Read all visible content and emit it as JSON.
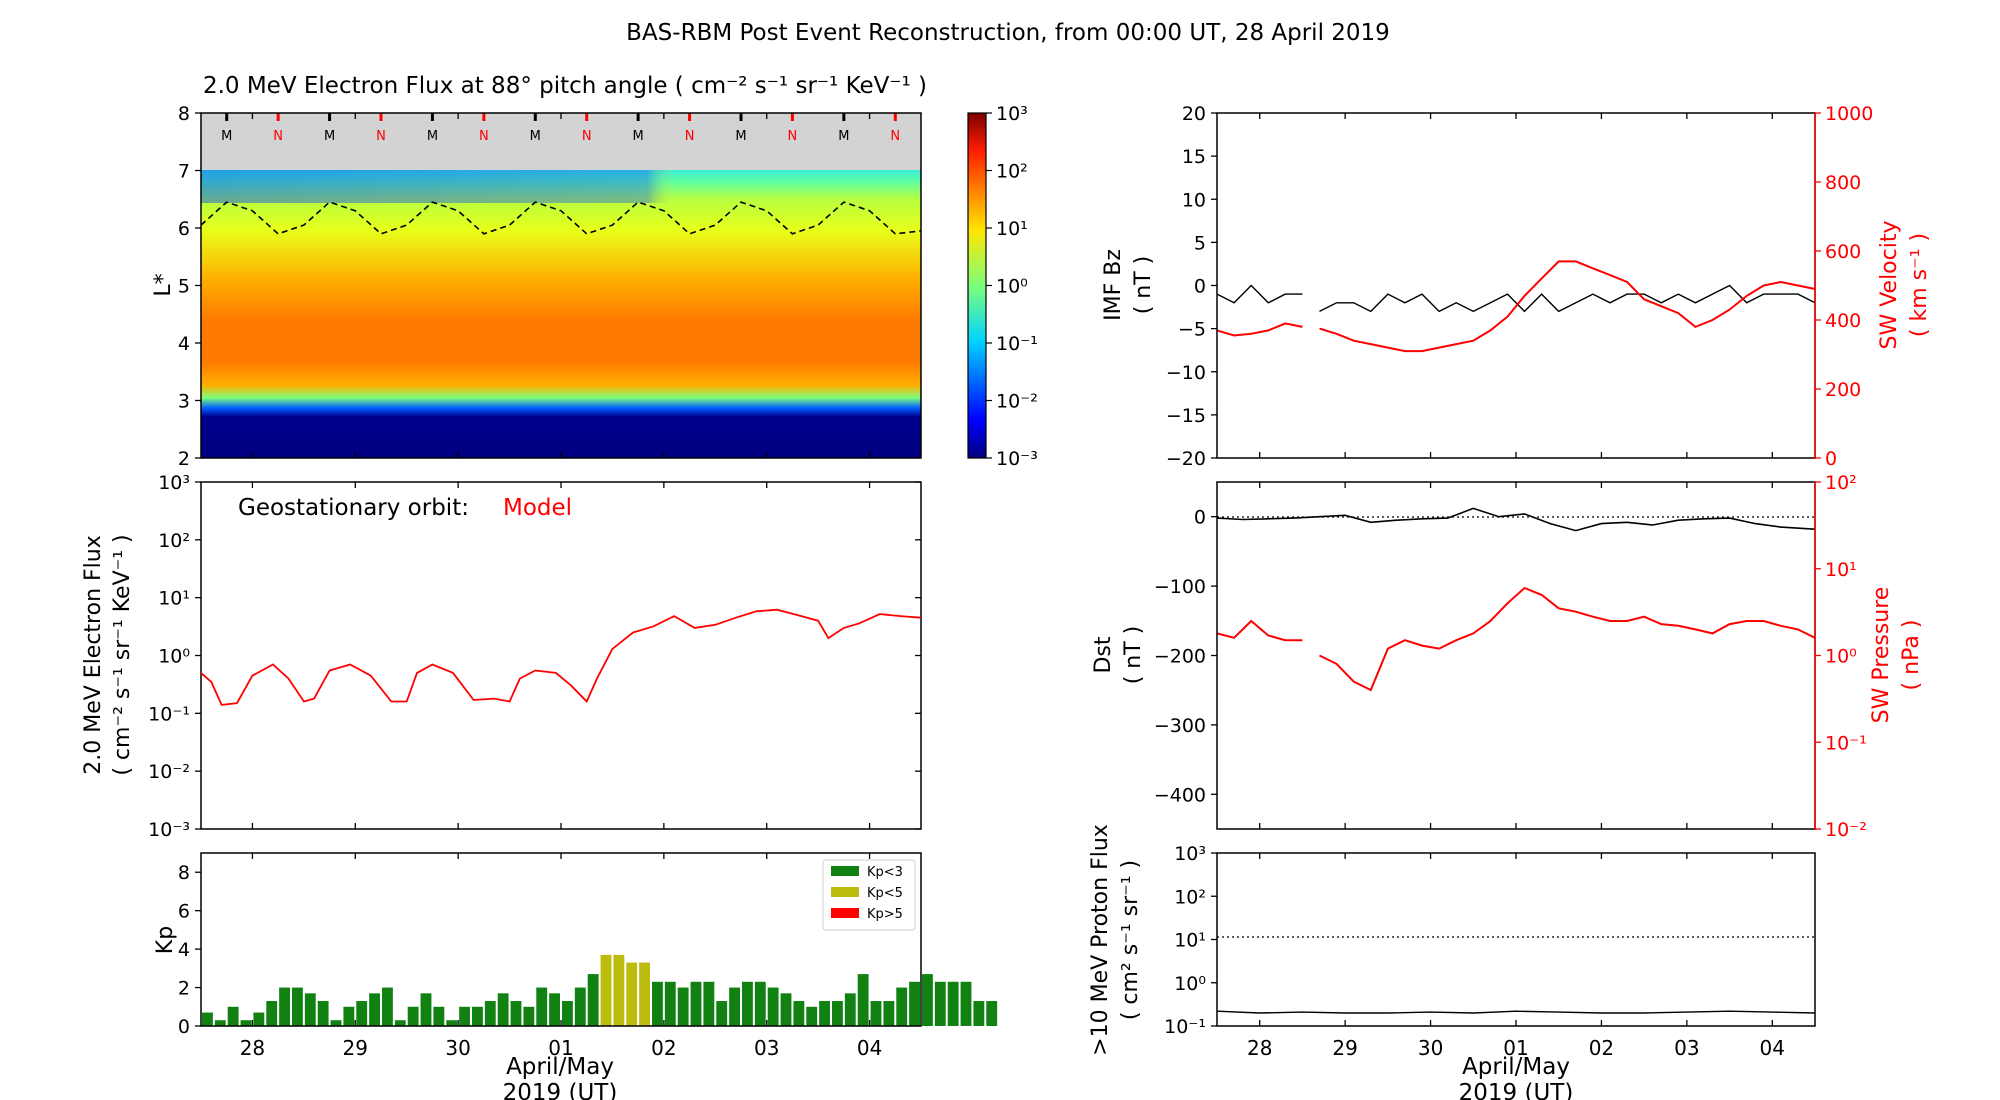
{
  "title": "BAS-RBM Post Event Reconstruction, from 00:00 UT, 28 April 2019",
  "colors": {
    "model_line": "#ff0000",
    "kp_low": "#118211",
    "kp_mid": "#bcbc0f",
    "kp_high": "#ff0000",
    "black": "#000000",
    "gray_band": "#d3d3d3"
  },
  "x_axis": {
    "tick_labels": [
      "28",
      "29",
      "30",
      "01",
      "02",
      "03",
      "04"
    ],
    "xlabel_line1": "April/May",
    "xlabel_line2": "2019 (UT)"
  },
  "chart_data": [
    {
      "id": "flux_heatmap",
      "type": "heatmap",
      "title": "2.0 MeV Electron Flux at 88° pitch angle ( cm⁻² s⁻¹ sr⁻¹ KeV⁻¹ )",
      "ylabel": "L*",
      "y_ticks": [
        "2",
        "3",
        "4",
        "5",
        "6",
        "7",
        "8"
      ],
      "ylim": [
        2,
        8
      ],
      "colorbar": {
        "scale": "log",
        "range": [
          0.001,
          1000
        ],
        "tick_labels": [
          "10⁻³",
          "10⁻²",
          "10⁻¹",
          "10⁰",
          "10¹",
          "10²",
          "10³"
        ]
      },
      "mlt_markers": [
        "M",
        "N",
        "M",
        "N",
        "M",
        "N",
        "M",
        "N",
        "M",
        "N",
        "M",
        "N",
        "M",
        "N"
      ],
      "geo_L_days": [
        0,
        0.25,
        0.5,
        0.75,
        1,
        1.25,
        1.5,
        1.75,
        2,
        2.25,
        2.5,
        2.75,
        3,
        3.25,
        3.5,
        3.75,
        4,
        4.25,
        4.5,
        4.75,
        5,
        5.25,
        5.5,
        5.75,
        6,
        6.25,
        6.5,
        6.75,
        7
      ],
      "geo_L_values": [
        6.05,
        6.45,
        6.3,
        5.9,
        6.05,
        6.45,
        6.3,
        5.9,
        6.05,
        6.45,
        6.3,
        5.9,
        6.05,
        6.45,
        6.3,
        5.9,
        6.05,
        6.45,
        6.3,
        5.9,
        6.05,
        6.45,
        6.3,
        5.9,
        6.05,
        6.45,
        6.3,
        5.9,
        5.95
      ]
    },
    {
      "id": "geo_flux",
      "type": "line",
      "ylabel_line1": "2.0 MeV Electron Flux",
      "ylabel_line2": "( cm⁻² s⁻¹ sr⁻¹ KeV⁻¹ )",
      "annotation_label": "Geostationary orbit:",
      "annotation_value": "Model",
      "y_scale": "log",
      "ylim": [
        0.001,
        1000
      ],
      "y_tick_labels": [
        "10⁻³",
        "10⁻²",
        "10⁻¹",
        "10⁰",
        "10¹",
        "10²",
        "10³"
      ],
      "days": [
        0,
        0.1,
        0.2,
        0.35,
        0.5,
        0.7,
        0.85,
        1,
        1.1,
        1.25,
        1.45,
        1.65,
        1.85,
        2,
        2.1,
        2.25,
        2.45,
        2.65,
        2.85,
        3,
        3.1,
        3.25,
        3.45,
        3.6,
        3.75,
        3.85,
        4,
        4.2,
        4.4,
        4.6,
        4.8,
        5,
        5.2,
        5.4,
        5.6,
        5.8,
        6,
        6.1,
        6.25,
        6.4,
        6.6,
        6.8,
        7
      ],
      "values": [
        0.5,
        0.35,
        0.14,
        0.15,
        0.45,
        0.7,
        0.4,
        0.16,
        0.18,
        0.55,
        0.7,
        0.45,
        0.16,
        0.16,
        0.5,
        0.7,
        0.5,
        0.17,
        0.18,
        0.16,
        0.4,
        0.55,
        0.5,
        0.3,
        0.16,
        0.4,
        1.3,
        2.5,
        3.2,
        4.8,
        3.0,
        3.4,
        4.5,
        5.8,
        6.2,
        5.0,
        4.0,
        2.0,
        3.0,
        3.6,
        5.2,
        4.8,
        4.5
      ]
    },
    {
      "id": "kp",
      "type": "bar",
      "ylabel": "Kp",
      "ylim": [
        0,
        9
      ],
      "y_ticks": [
        "0",
        "2",
        "4",
        "6",
        "8"
      ],
      "legend": [
        "Kp<3",
        "Kp<5",
        "Kp>5"
      ],
      "legend_position": "top-right",
      "bar_width_days": 0.125,
      "values": [
        0.7,
        0.3,
        1.0,
        0.3,
        0.7,
        1.3,
        2.0,
        2.0,
        1.7,
        1.3,
        0.3,
        1.0,
        1.3,
        1.7,
        2.0,
        0.3,
        1.0,
        1.7,
        1.0,
        0.3,
        1.0,
        1.0,
        1.3,
        1.7,
        1.3,
        1.0,
        2.0,
        1.7,
        1.3,
        2.0,
        2.7,
        3.7,
        3.7,
        3.3,
        3.3,
        2.3,
        2.3,
        2.0,
        2.3,
        2.3,
        1.3,
        2.0,
        2.3,
        2.3,
        2.0,
        1.7,
        1.3,
        1.0,
        1.3,
        1.3,
        1.7,
        2.7,
        1.3,
        1.3,
        2.0,
        2.3,
        2.7,
        2.3,
        2.3,
        2.3,
        1.3,
        1.3
      ]
    },
    {
      "id": "imf_sw",
      "type": "line",
      "ylabel_left_line1": "IMF Bz",
      "ylabel_left_line2": "( nT )",
      "ylabel_right_line1": "SW Velocity",
      "ylabel_right_line2": "( km s⁻¹ )",
      "ylim_left": [
        -20,
        20
      ],
      "ylim_right": [
        0,
        1000
      ],
      "y_ticks_left": [
        "−20",
        "−15",
        "−10",
        "−5",
        "0",
        "5",
        "10",
        "15",
        "20"
      ],
      "y_ticks_right": [
        "0",
        "200",
        "400",
        "600",
        "800",
        "1000"
      ],
      "sw_velocity_days": [
        0,
        0.2,
        0.4,
        0.6,
        0.8,
        1.0,
        1.1,
        1.2,
        1.4,
        1.6,
        1.8,
        2.0,
        2.2,
        2.4,
        2.6,
        2.8,
        3.0,
        3.2,
        3.4,
        3.6,
        3.8,
        4.0,
        4.2,
        4.4,
        4.6,
        4.8,
        5.0,
        5.2,
        5.4,
        5.6,
        5.8,
        6.0,
        6.2,
        6.4,
        6.6,
        6.8,
        7
      ],
      "sw_velocity_values": [
        370,
        355,
        360,
        370,
        390,
        380,
        null,
        375,
        360,
        340,
        330,
        320,
        310,
        310,
        320,
        330,
        340,
        370,
        410,
        470,
        520,
        570,
        570,
        550,
        530,
        510,
        460,
        440,
        420,
        380,
        400,
        430,
        470,
        500,
        510,
        500,
        490
      ],
      "imf_bz_days": [
        0,
        0.2,
        0.4,
        0.6,
        0.8,
        1.0,
        1.1,
        1.2,
        1.4,
        1.6,
        1.8,
        2.0,
        2.2,
        2.4,
        2.6,
        2.8,
        3.0,
        3.2,
        3.4,
        3.6,
        3.8,
        4.0,
        4.2,
        4.4,
        4.6,
        4.8,
        5.0,
        5.2,
        5.4,
        5.6,
        5.8,
        6.0,
        6.2,
        6.4,
        6.6,
        6.8,
        7
      ],
      "imf_bz_values": [
        -1,
        -2,
        0,
        -2,
        -1,
        -1,
        null,
        -3,
        -2,
        -2,
        -3,
        -1,
        -2,
        -1,
        -3,
        -2,
        -3,
        -2,
        -1,
        -3,
        -1,
        -3,
        -2,
        -1,
        -2,
        -1,
        -1,
        -2,
        -1,
        -2,
        -1,
        0,
        -2,
        -1,
        -1,
        -1,
        -2
      ]
    },
    {
      "id": "dst_pressure",
      "type": "line",
      "ylabel_left_line1": "Dst",
      "ylabel_left_line2": "( nT )",
      "ylabel_right_line1": "SW Pressure",
      "ylabel_right_line2": "( nPa )",
      "ylim_left": [
        -450,
        50
      ],
      "y_ticks_left": [
        "0",
        "−100",
        "−200",
        "−300",
        "−400"
      ],
      "y_scale_right": "log",
      "ylim_right": [
        0.01,
        100
      ],
      "y_ticks_right": [
        "10⁻²",
        "10⁻¹",
        "10⁰",
        "10¹",
        "10²"
      ],
      "dst_days": [
        0,
        0.3,
        0.6,
        0.9,
        1.2,
        1.5,
        1.8,
        2.1,
        2.4,
        2.7,
        3.0,
        3.3,
        3.6,
        3.9,
        4.2,
        4.5,
        4.8,
        5.1,
        5.4,
        5.7,
        6.0,
        6.3,
        6.6,
        7
      ],
      "dst_values": [
        -2,
        -4,
        -3,
        -2,
        0,
        2,
        -8,
        -5,
        -3,
        -2,
        12,
        0,
        4,
        -10,
        -20,
        -10,
        -8,
        -12,
        -5,
        -3,
        -2,
        -10,
        -15,
        -18
      ],
      "pressure_days": [
        0,
        0.2,
        0.4,
        0.6,
        0.8,
        1.0,
        1.1,
        1.2,
        1.4,
        1.6,
        1.8,
        2.0,
        2.2,
        2.4,
        2.6,
        2.8,
        3.0,
        3.2,
        3.4,
        3.6,
        3.8,
        4.0,
        4.2,
        4.4,
        4.6,
        4.8,
        5.0,
        5.2,
        5.4,
        5.6,
        5.8,
        6.0,
        6.2,
        6.4,
        6.6,
        6.8,
        7
      ],
      "pressure_values": [
        1.8,
        1.6,
        2.5,
        1.7,
        1.5,
        1.5,
        null,
        1.0,
        0.8,
        0.5,
        0.4,
        1.2,
        1.5,
        1.3,
        1.2,
        1.5,
        1.8,
        2.5,
        4,
        6,
        5,
        3.5,
        3.2,
        2.8,
        2.5,
        2.5,
        2.8,
        2.3,
        2.2,
        2.0,
        1.8,
        2.3,
        2.5,
        2.5,
        2.2,
        2.0,
        1.6
      ]
    },
    {
      "id": "proton_flux",
      "type": "line",
      "ylabel_line1": ">10 MeV Proton Flux",
      "ylabel_line2": "( cm² s⁻¹ sr⁻¹ )",
      "y_scale": "log",
      "ylim": [
        0.1,
        1000
      ],
      "y_ticks": [
        "10⁻¹",
        "10⁰",
        "10¹",
        "10²",
        "10³"
      ],
      "threshold": 10,
      "days": [
        0,
        0.5,
        1,
        1.5,
        2,
        2.5,
        3,
        3.5,
        4,
        4.5,
        5,
        5.5,
        6,
        6.5,
        7
      ],
      "values": [
        0.22,
        0.2,
        0.21,
        0.2,
        0.2,
        0.21,
        0.2,
        0.22,
        0.21,
        0.2,
        0.2,
        0.21,
        0.22,
        0.21,
        0.2
      ]
    }
  ]
}
